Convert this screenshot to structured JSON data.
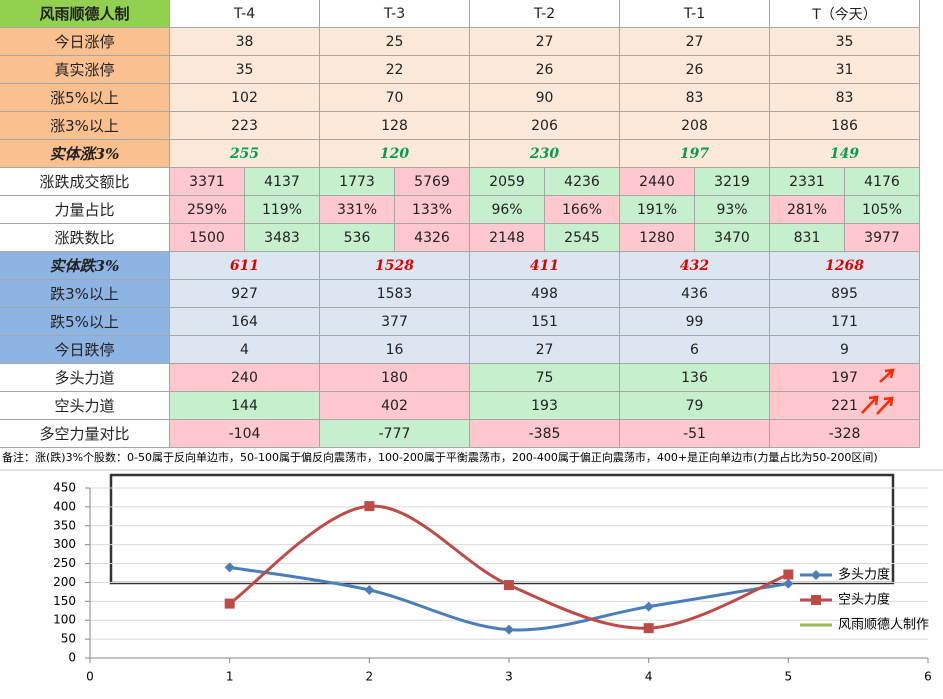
{
  "table": {
    "header": [
      "风雨顺德人制",
      "T-4",
      "T-3",
      "T-2",
      "T-1",
      "T（今天）"
    ],
    "header_fill": "#92d050",
    "rows": [
      {
        "label": "今日涨停",
        "label_fill": "#fac090",
        "fill": "#fde9d9",
        "cells": [
          "38",
          "25",
          "27",
          "27",
          "35"
        ]
      },
      {
        "label": "真实涨停",
        "label_fill": "#fac090",
        "fill": "#fde9d9",
        "cells": [
          "35",
          "22",
          "26",
          "26",
          "31"
        ]
      },
      {
        "label": "涨5%以上",
        "label_fill": "#fac090",
        "fill": "#fde9d9",
        "cells": [
          "102",
          "70",
          "90",
          "83",
          "83"
        ]
      },
      {
        "label": "涨3%以上",
        "label_fill": "#fac090",
        "fill": "#fde9d9",
        "cells": [
          "223",
          "128",
          "206",
          "208",
          "186"
        ]
      },
      {
        "label": "实体涨3%",
        "label_fill": "#fac090",
        "fill": "#fde9d9",
        "text_color": "#00a050",
        "cells": [
          "255",
          "120",
          "230",
          "197",
          "149"
        ]
      },
      {
        "label": "涨跌成交额比",
        "label_fill": "#ffffff",
        "cells": [
          [
            "3371",
            "4137"
          ],
          [
            "1773",
            "5769"
          ],
          [
            "2059",
            "4236"
          ],
          [
            "2440",
            "3219"
          ],
          [
            "2331",
            "4176"
          ]
        ],
        "colors": [
          [
            "#ffc7ce",
            "#c6efce"
          ],
          [
            "#c6efce",
            "#ffc7ce"
          ],
          [
            "#c6efce",
            "#c6efce"
          ],
          [
            "#ffc7ce",
            "#c6efce"
          ],
          [
            "#c6efce",
            "#c6efce"
          ]
        ]
      },
      {
        "label": "力量占比",
        "label_fill": "#ffffff",
        "cells": [
          [
            "259%",
            "119%"
          ],
          [
            "331%",
            "133%"
          ],
          [
            "96%",
            "166%"
          ],
          [
            "191%",
            "93%"
          ],
          [
            "281%",
            "105%"
          ]
        ],
        "colors": [
          [
            "#ffc7ce",
            "#c6efce"
          ],
          [
            "#ffc7ce",
            "#ffc7ce"
          ],
          [
            "#c6efce",
            "#ffc7ce"
          ],
          [
            "#c6efce",
            "#c6efce"
          ],
          [
            "#ffc7ce",
            "#c6efce"
          ]
        ]
      },
      {
        "label": "涨跌数比",
        "label_fill": "#ffffff",
        "cells": [
          [
            "1500",
            "3483"
          ],
          [
            "536",
            "4326"
          ],
          [
            "2148",
            "2545"
          ],
          [
            "1280",
            "3470"
          ],
          [
            "831",
            "3977"
          ]
        ],
        "colors": [
          [
            "#ffc7ce",
            "#c6efce"
          ],
          [
            "#c6efce",
            "#ffc7ce"
          ],
          [
            "#ffc7ce",
            "#c6efce"
          ],
          [
            "#ffc7ce",
            "#c6efce"
          ],
          [
            "#c6efce",
            "#ffc7ce"
          ]
        ]
      },
      {
        "label": "实体跌3%",
        "label_fill": "#8db4e2",
        "fill": "#dce6f1",
        "text_color": "#e00000",
        "cells": [
          "611",
          "1528",
          "411",
          "432",
          "1268"
        ]
      },
      {
        "label": "跌3%以上",
        "label_fill": "#8db4e2",
        "fill": "#dce6f1",
        "cells": [
          "927",
          "1583",
          "498",
          "436",
          "895"
        ]
      },
      {
        "label": "跌5%以上",
        "label_fill": "#8db4e2",
        "fill": "#dce6f1",
        "cells": [
          "164",
          "377",
          "151",
          "99",
          "171"
        ]
      },
      {
        "label": "今日跌停",
        "label_fill": "#8db4e2",
        "fill": "#dce6f1",
        "cells": [
          "4",
          "16",
          "27",
          "6",
          "9"
        ]
      },
      {
        "label": "多头力道",
        "label_fill": "#ffffff",
        "cells": [
          "240",
          "180",
          "75",
          "136",
          "197"
        ],
        "colors": [
          "#ffc7ce",
          "#ffc7ce",
          "#c6efce",
          "#c6efce",
          "#ffc7ce"
        ]
      },
      {
        "label": "空头力道",
        "label_fill": "#ffffff",
        "cells": [
          "144",
          "402",
          "193",
          "79",
          "221"
        ],
        "colors": [
          "#c6efce",
          "#ffc7ce",
          "#c6efce",
          "#c6efce",
          "#ffc7ce"
        ]
      },
      {
        "label": "多空力量对比",
        "label_fill": "#ffffff",
        "cells": [
          "-104",
          "-777",
          "-385",
          "-51",
          "-328"
        ],
        "colors": [
          "#ffc7ce",
          "#c6efce",
          "#ffc7ce",
          "#ffc7ce",
          "#ffc7ce"
        ]
      }
    ]
  },
  "note": "备注：涨(跌)3%个股数：0-50属于反向单边市，50-100属于偏反向震荡市，100-200属于平衡震荡市，200-400属于偏正向震荡市，400+是正向单边市(力量占比为50-200区间)",
  "chart_data": {
    "type": "line",
    "x": [
      1,
      2,
      3,
      4,
      5
    ],
    "xlim": [
      0,
      6
    ],
    "xticks": [
      0,
      1,
      2,
      3,
      4,
      5,
      6
    ],
    "ylim": [
      0,
      450
    ],
    "yticks": [
      0,
      50,
      100,
      150,
      200,
      250,
      300,
      350,
      400,
      450
    ],
    "grid": true,
    "series": [
      {
        "name": "多头力度",
        "color": "#4a7ebb",
        "marker": "diamond",
        "values": [
          240,
          180,
          75,
          136,
          197
        ]
      },
      {
        "name": "空头力度",
        "color": "#be4b48",
        "marker": "square",
        "values": [
          144,
          402,
          193,
          79,
          221
        ]
      }
    ],
    "legend_note": {
      "name": "风雨顺德人制作",
      "color": "#9bbb59"
    }
  }
}
